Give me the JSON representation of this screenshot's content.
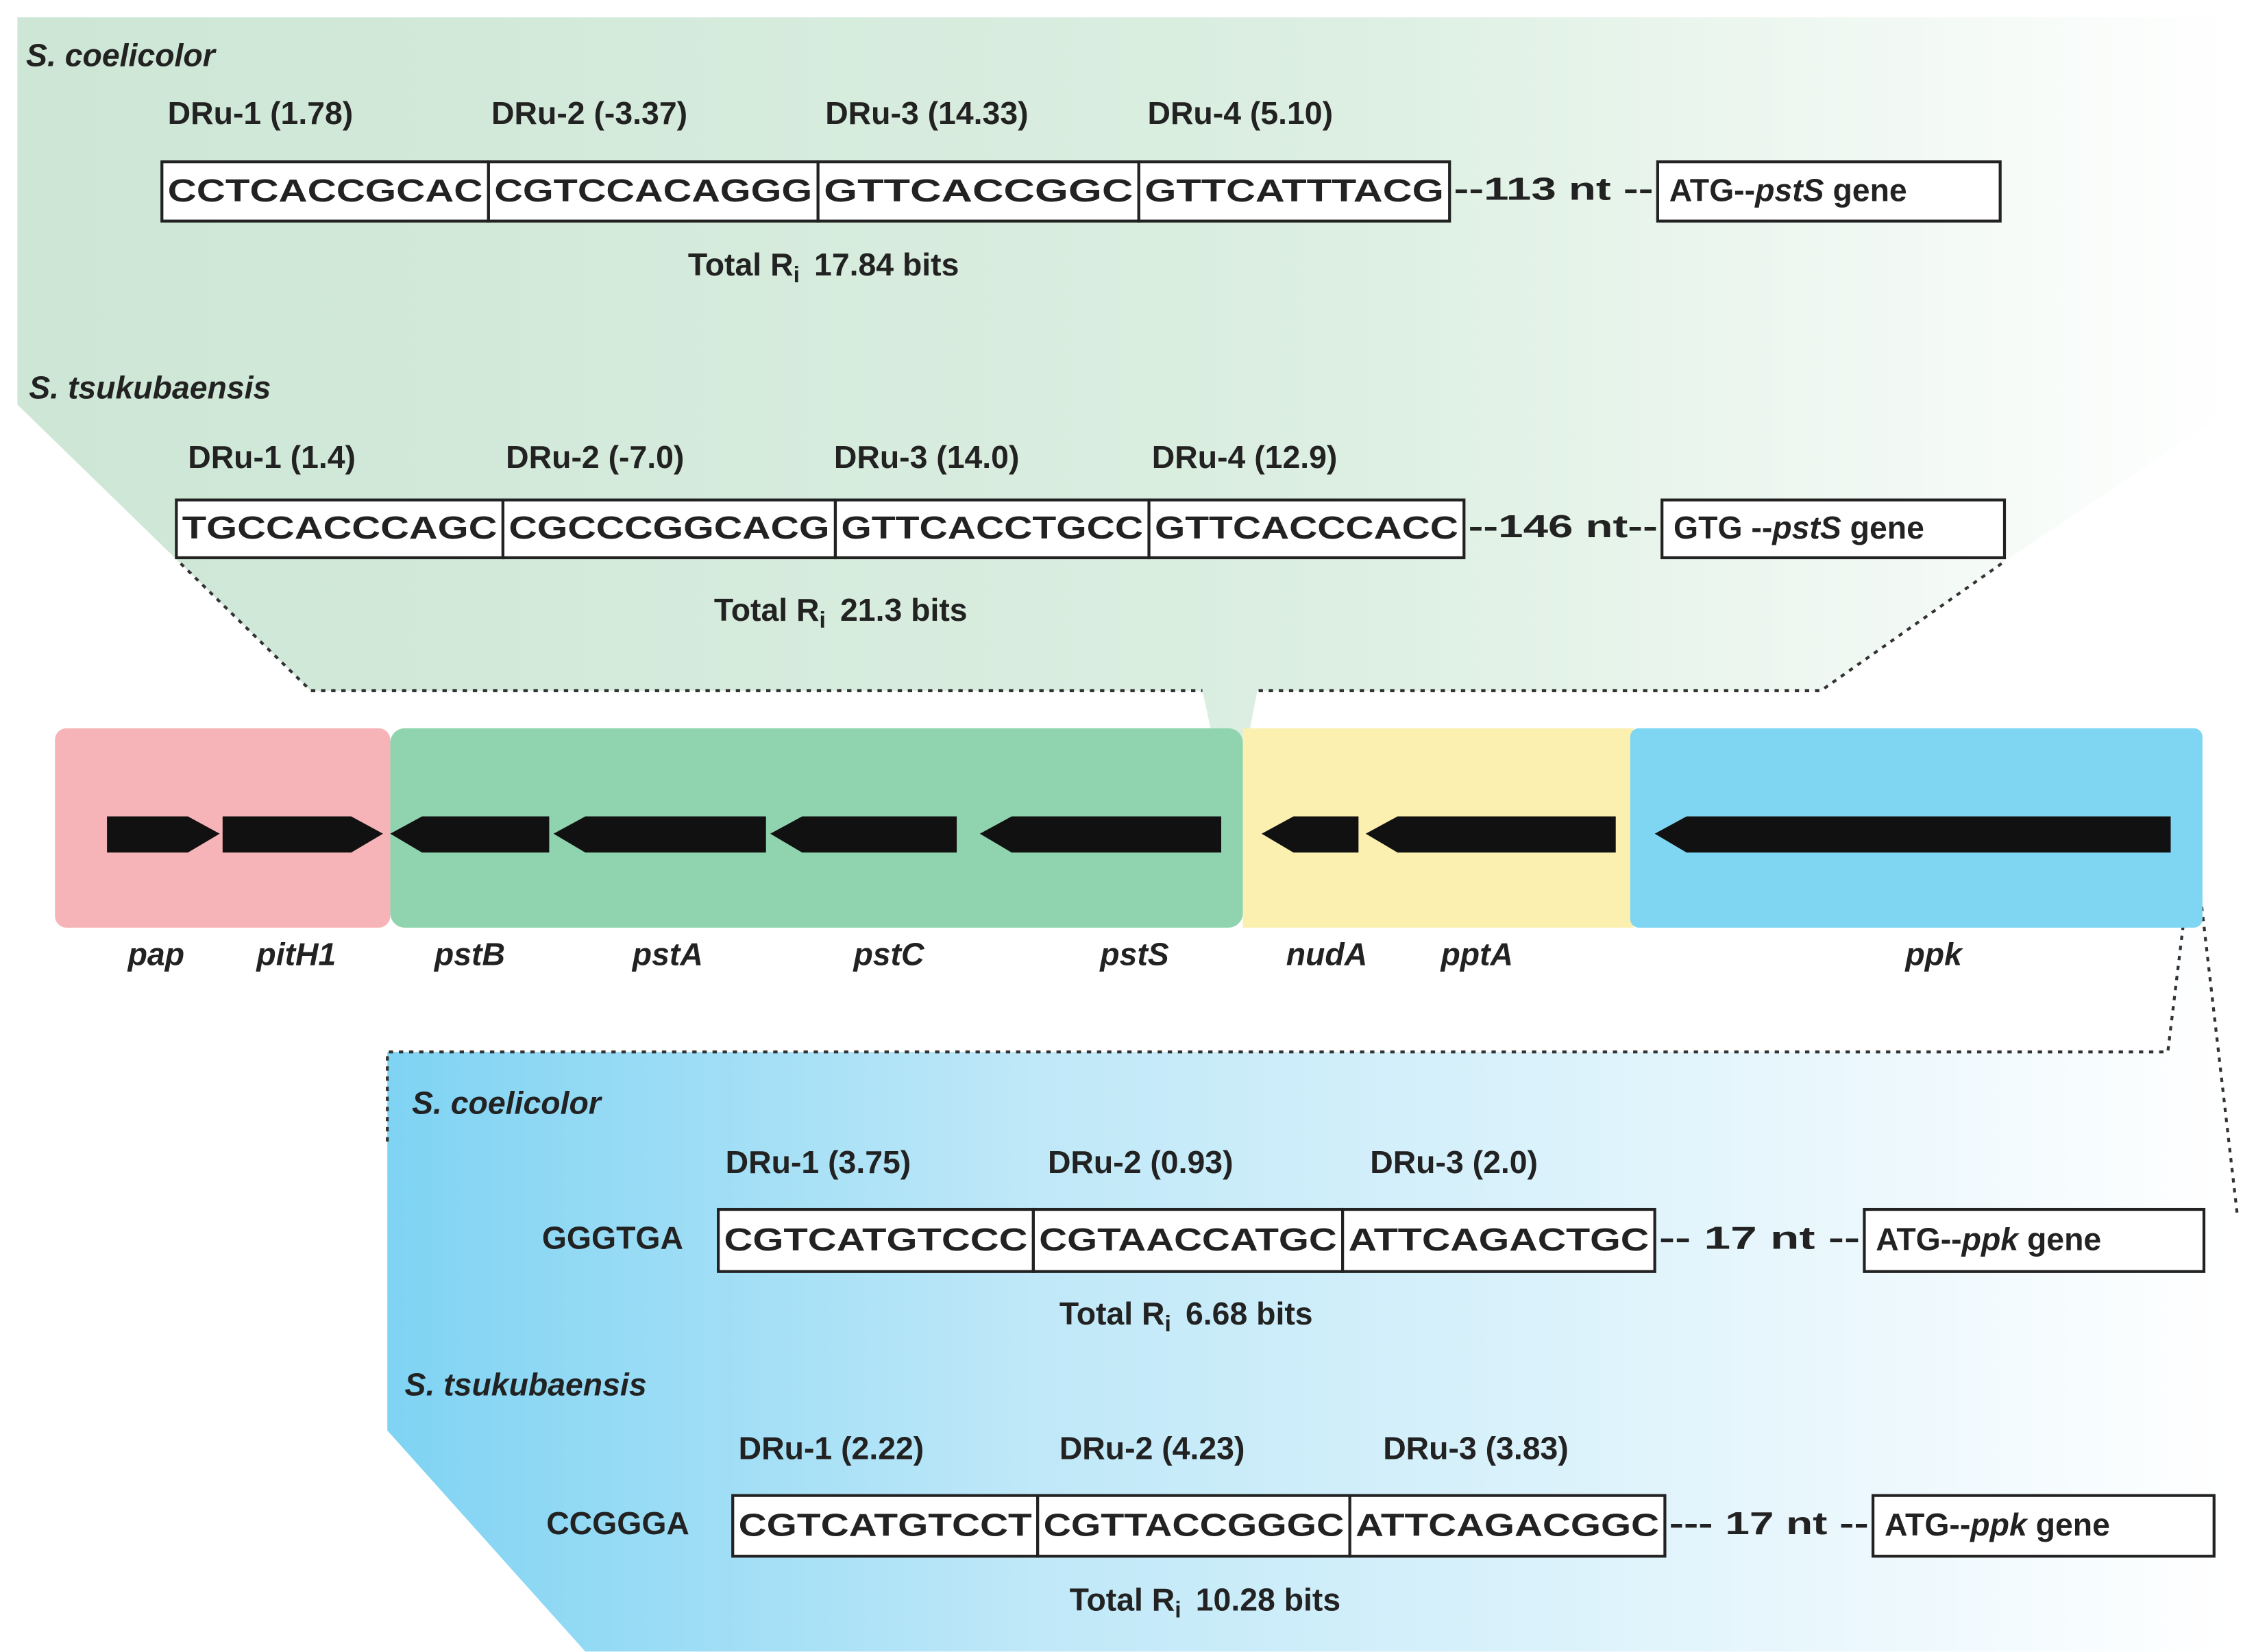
{
  "pst_region": {
    "organisms": [
      {
        "name": "S. coelicolor",
        "drus": [
          {
            "label": "DRu-1 (1.78)",
            "seq": "CCTCACCGCAC"
          },
          {
            "label": "DRu-2 (-3.37)",
            "seq": "CGTCCACAGGG"
          },
          {
            "label": "DRu-3 (14.33)",
            "seq": "GTTCACCGGC"
          },
          {
            "label": "DRu-4 (5.10)",
            "seq": "GTTCATTTACG"
          }
        ],
        "spacer": "--113 nt --",
        "start_box": {
          "pre": "ATG--",
          "gene": "pstS",
          "post": " gene"
        },
        "total": {
          "pre": "Total R",
          "sub": "i",
          "post": "17.84 bits"
        }
      },
      {
        "name": "S. tsukubaensis",
        "drus": [
          {
            "label": "DRu-1 (1.4)",
            "seq": "TGCCACCCAGC"
          },
          {
            "label": "DRu-2 (-7.0)",
            "seq": "CGCCCGGCACG"
          },
          {
            "label": "DRu-3 (14.0)",
            "seq": "GTTCACCTGCC"
          },
          {
            "label": "DRu-4 (12.9)",
            "seq": "GTTCACCCACC"
          }
        ],
        "spacer": "--146 nt--",
        "start_box": {
          "pre": "GTG --",
          "gene": "pstS",
          "post": " gene"
        },
        "total": {
          "pre": "Total R",
          "sub": "i",
          "post": "21.3 bits"
        }
      }
    ]
  },
  "genes": [
    "pap",
    "pitH1",
    "pstB",
    "pstA",
    "pstC",
    "pstS",
    "nudA",
    "pptA",
    "ppk"
  ],
  "ppk_region": {
    "organisms": [
      {
        "name": "S. coelicolor",
        "upstream": "GGGTGA",
        "drus": [
          {
            "label": "DRu-1 (3.75)",
            "seq": "CGTCATGTCCC"
          },
          {
            "label": "DRu-2 (0.93)",
            "seq": "CGTAACCATGC"
          },
          {
            "label": "DRu-3 (2.0)",
            "seq": "ATTCAGACTGC"
          }
        ],
        "spacer": "-- 17 nt --",
        "start_box": {
          "pre": "ATG--",
          "gene": "ppk",
          "post": " gene"
        },
        "total": {
          "pre": "Total R",
          "sub": "i",
          "post": "6.68 bits"
        }
      },
      {
        "name": "S. tsukubaensis",
        "upstream": "CCGGGA",
        "drus": [
          {
            "label": "DRu-1 (2.22)",
            "seq": "CGTCATGTCCT"
          },
          {
            "label": "DRu-2 (4.23)",
            "seq": "CGTTACCGGGC"
          },
          {
            "label": "DRu-3 (3.83)",
            "seq": "ATTCAGACGGC"
          }
        ],
        "spacer": "--- 17 nt --",
        "start_box": {
          "pre": "ATG--",
          "gene": "ppk",
          "post": " gene"
        },
        "total": {
          "pre": "Total R",
          "sub": "i",
          "post": "10.28 bits"
        }
      }
    ]
  }
}
